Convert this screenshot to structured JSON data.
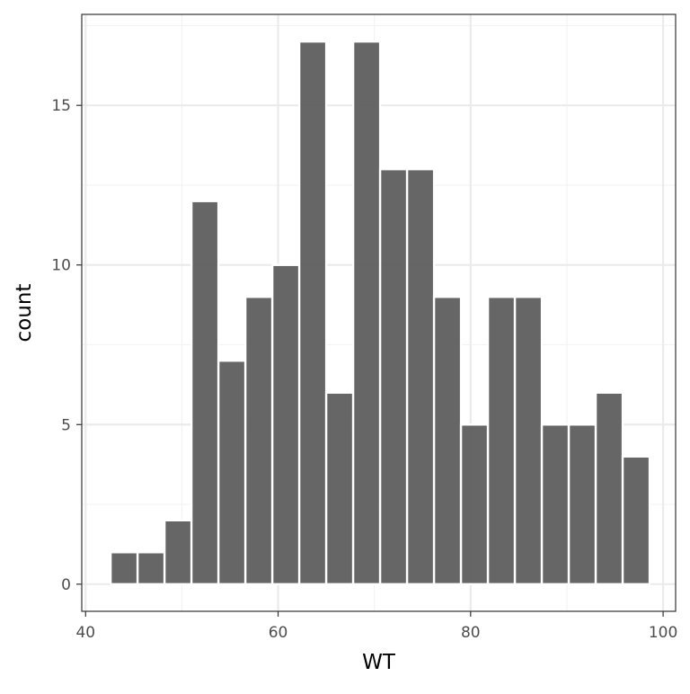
{
  "chart_data": {
    "type": "bar",
    "title": "",
    "xlabel": "WT",
    "ylabel": "count",
    "xlim": [
      39.6,
      101.3
    ],
    "ylim": [
      -0.85,
      17.85
    ],
    "grid": true,
    "bar_edge_color": "#ffffff",
    "bar_fill_color": "#595959",
    "panel_border_color": "#333333",
    "grid_major_color": "#ebebeb",
    "grid_minor_color": "#f3f3f3",
    "x_ticks": [
      40,
      60,
      80,
      100
    ],
    "x_tick_labels": [
      "40",
      "60",
      "80",
      "100"
    ],
    "y_ticks": [
      0,
      5,
      10,
      15
    ],
    "y_tick_labels": [
      "0",
      "5",
      "10",
      "15"
    ],
    "bin_width": 2.8,
    "bins": [
      {
        "x": 44.0,
        "count": 1
      },
      {
        "x": 46.8,
        "count": 1
      },
      {
        "x": 49.6,
        "count": 2
      },
      {
        "x": 52.4,
        "count": 12
      },
      {
        "x": 55.2,
        "count": 7
      },
      {
        "x": 58.0,
        "count": 9
      },
      {
        "x": 60.8,
        "count": 10
      },
      {
        "x": 63.6,
        "count": 17
      },
      {
        "x": 66.4,
        "count": 6
      },
      {
        "x": 69.2,
        "count": 17
      },
      {
        "x": 72.0,
        "count": 13
      },
      {
        "x": 74.8,
        "count": 13
      },
      {
        "x": 77.6,
        "count": 9
      },
      {
        "x": 80.4,
        "count": 5
      },
      {
        "x": 83.2,
        "count": 9
      },
      {
        "x": 86.0,
        "count": 9
      },
      {
        "x": 88.8,
        "count": 5
      },
      {
        "x": 91.6,
        "count": 5
      },
      {
        "x": 94.4,
        "count": 6
      },
      {
        "x": 97.2,
        "count": 4
      }
    ]
  }
}
